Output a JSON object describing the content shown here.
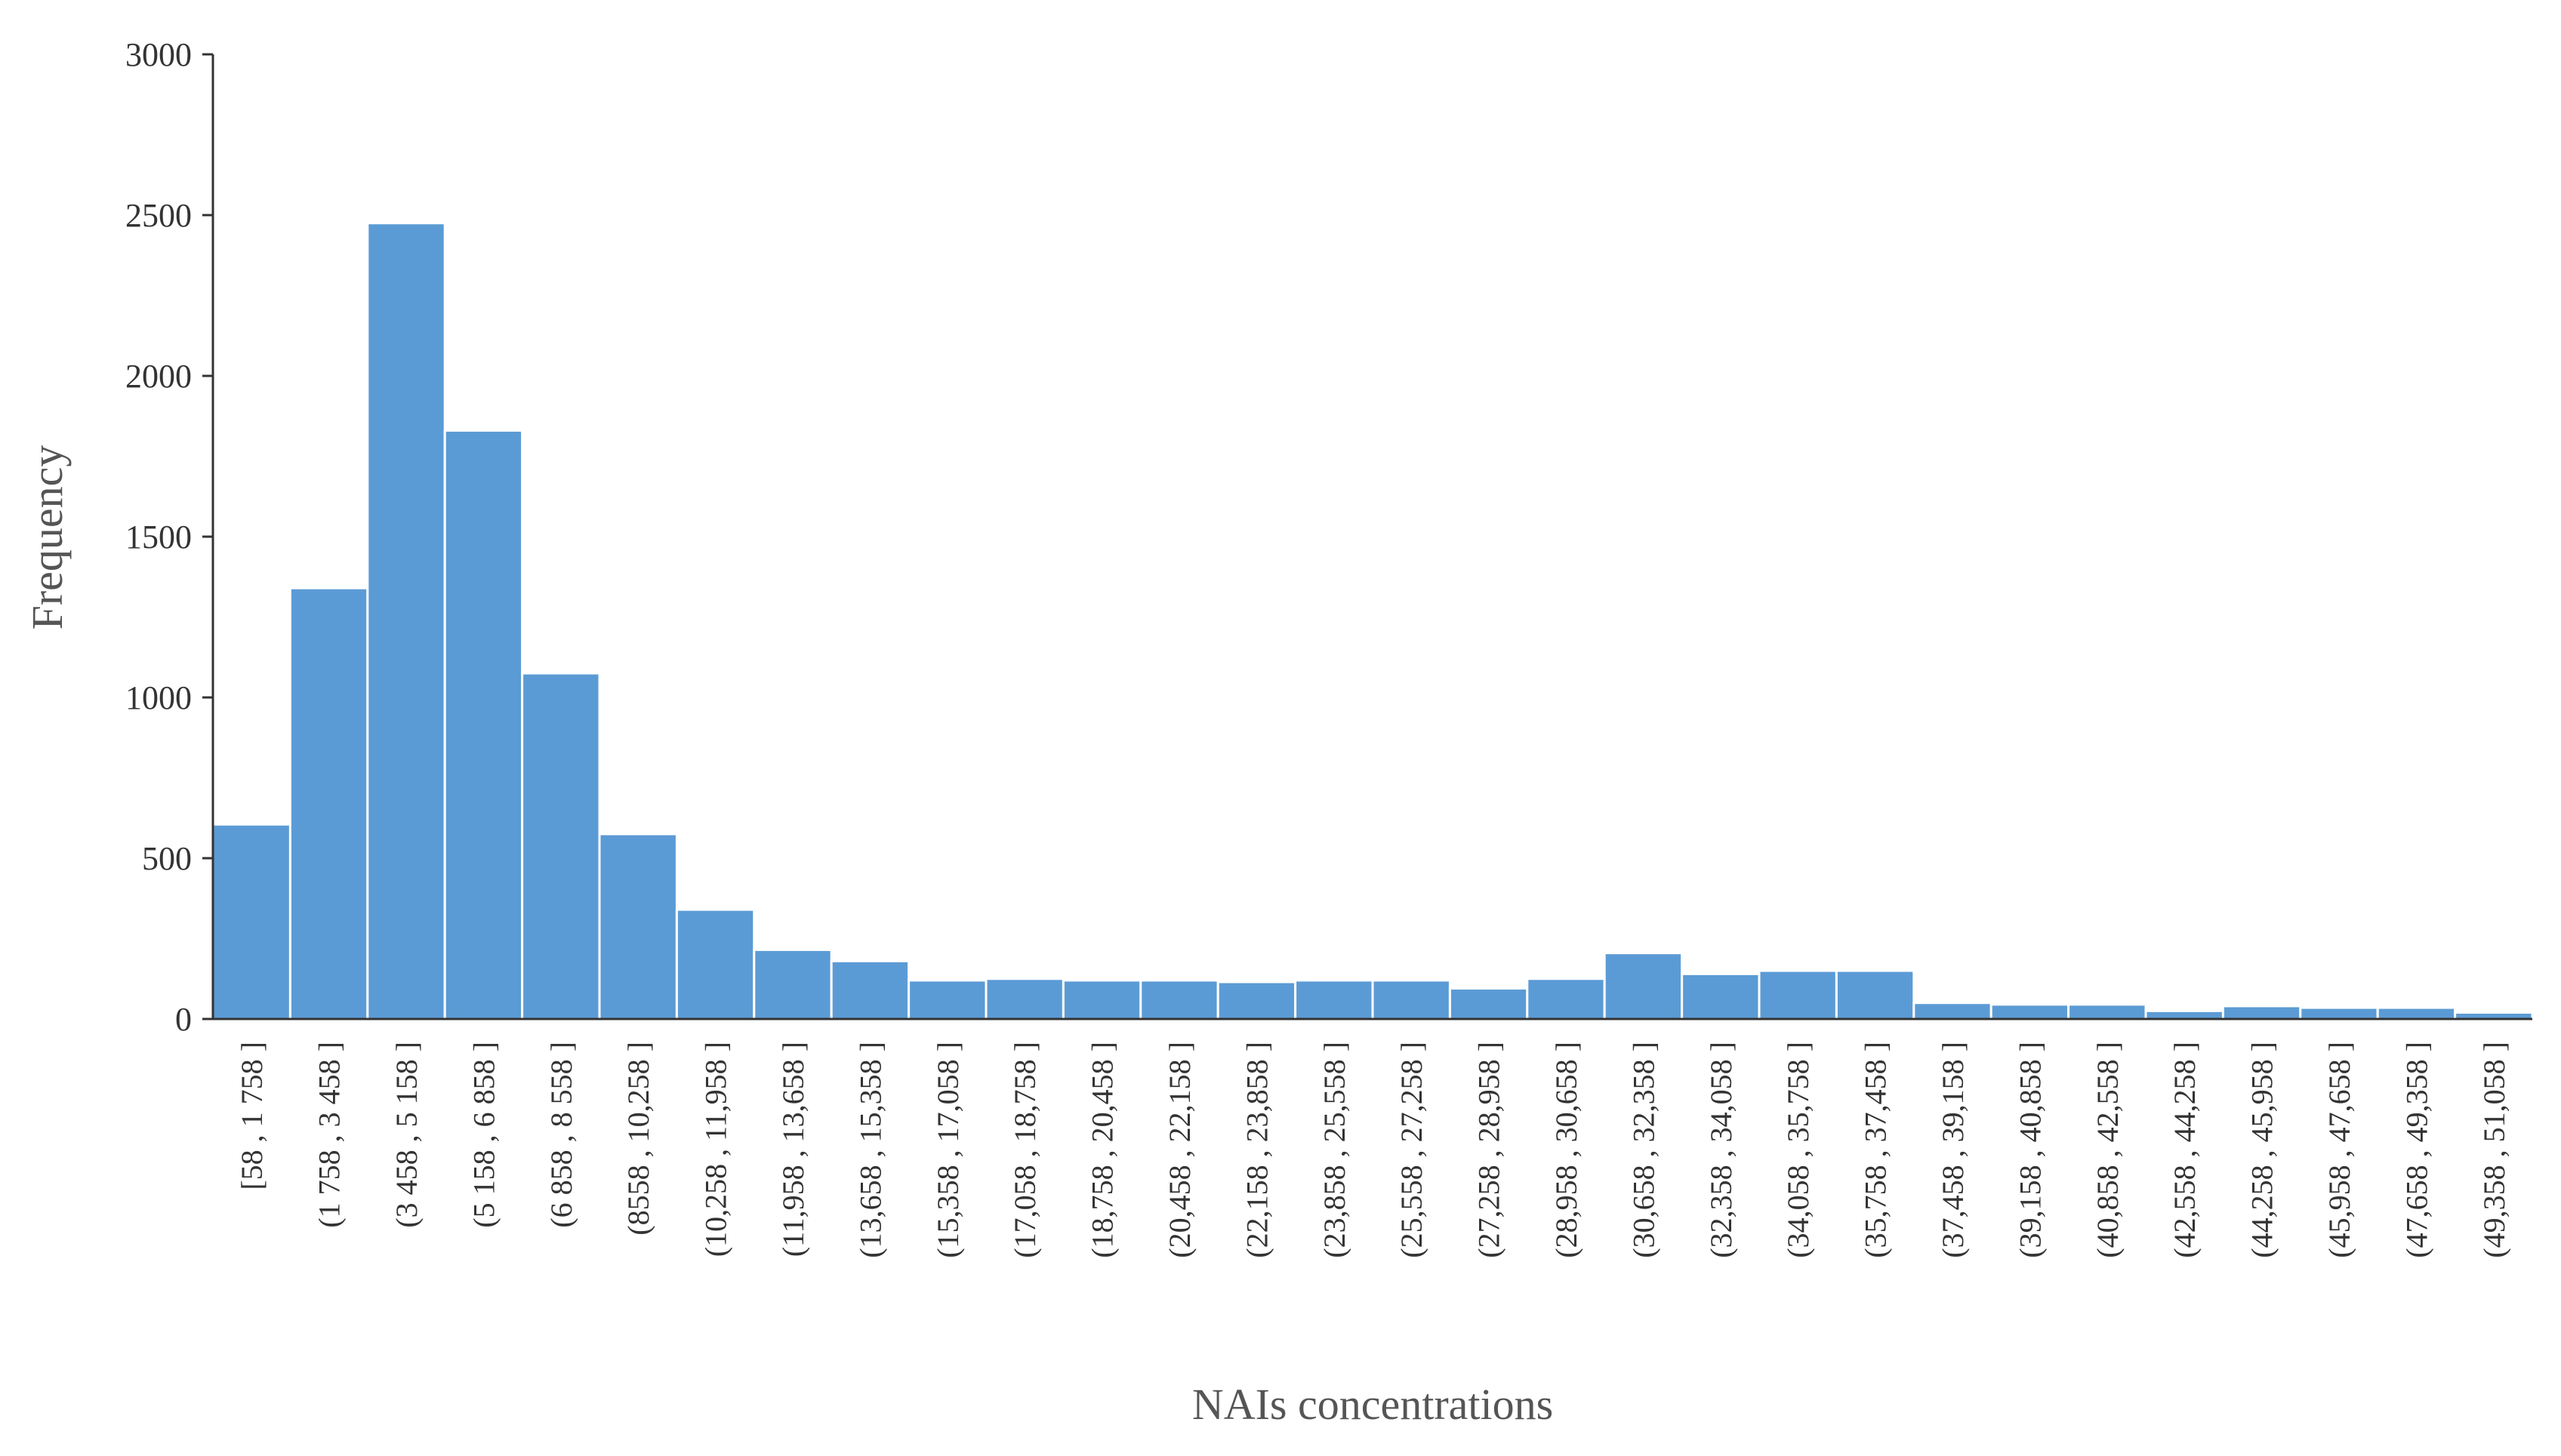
{
  "chart_data": {
    "type": "bar",
    "title": "",
    "xlabel": "NAIs concentrations",
    "ylabel": "Frequency",
    "ylim": [
      0,
      3000
    ],
    "yticks": [
      "0",
      "500",
      "1000",
      "1500",
      "2000",
      "2500",
      "3000"
    ],
    "grid": false,
    "legend": "none",
    "bar_color": "#5b9bd5",
    "categories": [
      "[58 , 1 758 ]",
      "(1 758 , 3 458 ]",
      "(3 458 , 5 158 ]",
      "(5 158 , 6 858 ]",
      "(6 858 , 8 558 ]",
      "(8558 , 10,258 ]",
      "(10,258 , 11,958 ]",
      "(11,958 , 13,658 ]",
      "(13,658 , 15,358 ]",
      "(15,358 , 17,058 ]",
      "(17,058 , 18,758 ]",
      "(18,758 , 20,458 ]",
      "(20,458 , 22,158 ]",
      "(22,158 , 23,858 ]",
      "(23,858 , 25,558 ]",
      "(25,558 , 27,258 ]",
      "(27,258 , 28,958 ]",
      "(28,958 , 30,658 ]",
      "(30,658 , 32,358 ]",
      "(32,358 , 34,058 ]",
      "(34,058 , 35,758 ]",
      "(35,758 , 37,458 ]",
      "(37,458 , 39,158 ]",
      "(39,158 , 40,858 ]",
      "(40,858 , 42,558 ]",
      "(42,558 , 44,258 ]",
      "(44,258 , 45,958 ]",
      "(45,958 , 47,658 ]",
      "(47,658 , 49,358 ]",
      "(49,358 , 51,058 ]"
    ],
    "values": [
      605,
      1340,
      2475,
      1830,
      1075,
      575,
      340,
      215,
      180,
      120,
      125,
      120,
      120,
      115,
      120,
      120,
      95,
      125,
      205,
      140,
      150,
      150,
      50,
      45,
      45,
      25,
      40,
      35,
      35,
      20
    ]
  }
}
